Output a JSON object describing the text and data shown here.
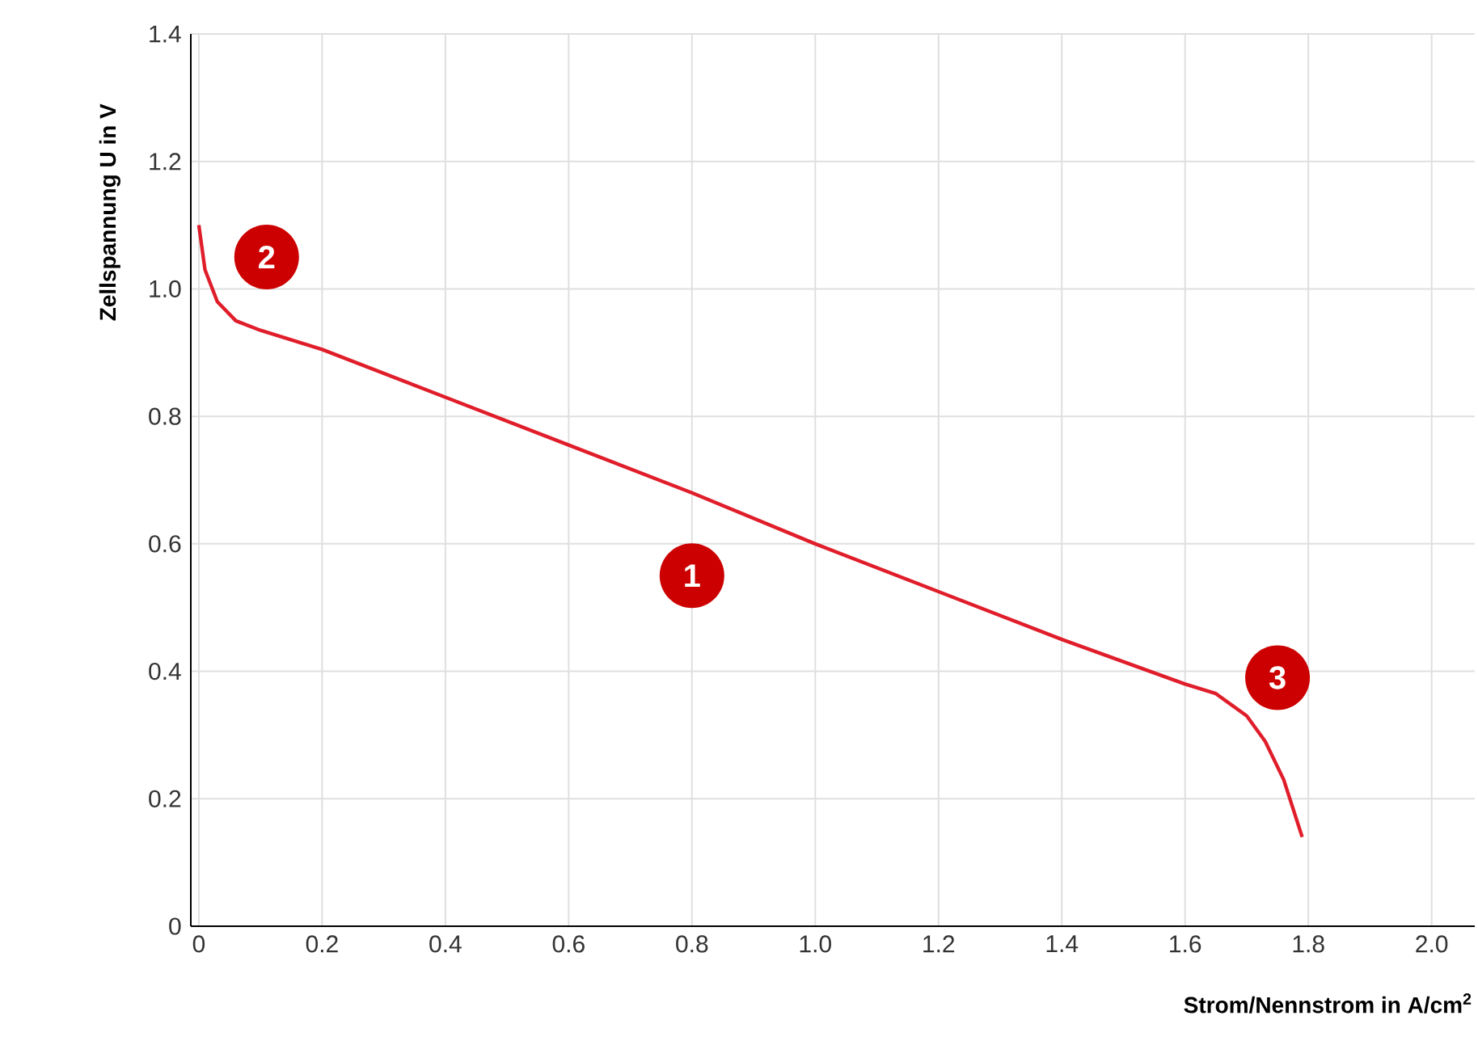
{
  "chart_data": {
    "type": "line",
    "xlabel": "Strom/Nennstrom in A/cm$^{2}$",
    "ylabel": "Zellspannung U in V",
    "xlim": [
      -0.013,
      2.07
    ],
    "ylim": [
      0,
      1.4
    ],
    "xticks": [
      0,
      0.2,
      0.4,
      0.6,
      0.8,
      {
        "value": 1,
        "label": "1.0"
      },
      1.2,
      1.4,
      1.6,
      1.8,
      {
        "value": 2,
        "label": "2.0"
      }
    ],
    "yticks": [
      0,
      0.2,
      0.4,
      0.6,
      0.8,
      {
        "value": 1,
        "label": "1.0"
      },
      1.2,
      1.4
    ],
    "grid": true,
    "marker": "none",
    "line_style": "solid",
    "series": [
      {
        "color": "#e01e2b",
        "x": [
          0,
          0.01,
          0.03,
          0.06,
          0.1,
          0.2,
          0.4,
          0.6,
          0.8,
          1.0,
          1.2,
          1.4,
          1.6,
          1.65,
          1.7,
          1.73,
          1.76,
          1.79
        ],
        "values": [
          1.1,
          1.03,
          0.98,
          0.95,
          0.935,
          0.905,
          0.83,
          0.755,
          0.68,
          0.6,
          0.525,
          0.45,
          0.38,
          0.365,
          0.33,
          0.29,
          0.23,
          0.14
        ]
      }
    ],
    "annotations": [
      {
        "text": "1",
        "x": 0.8,
        "y": 0.55
      },
      {
        "text": "2",
        "x": 0.11,
        "y": 1.05
      },
      {
        "text": "3",
        "x": 1.75,
        "y": 0.39
      }
    ]
  }
}
